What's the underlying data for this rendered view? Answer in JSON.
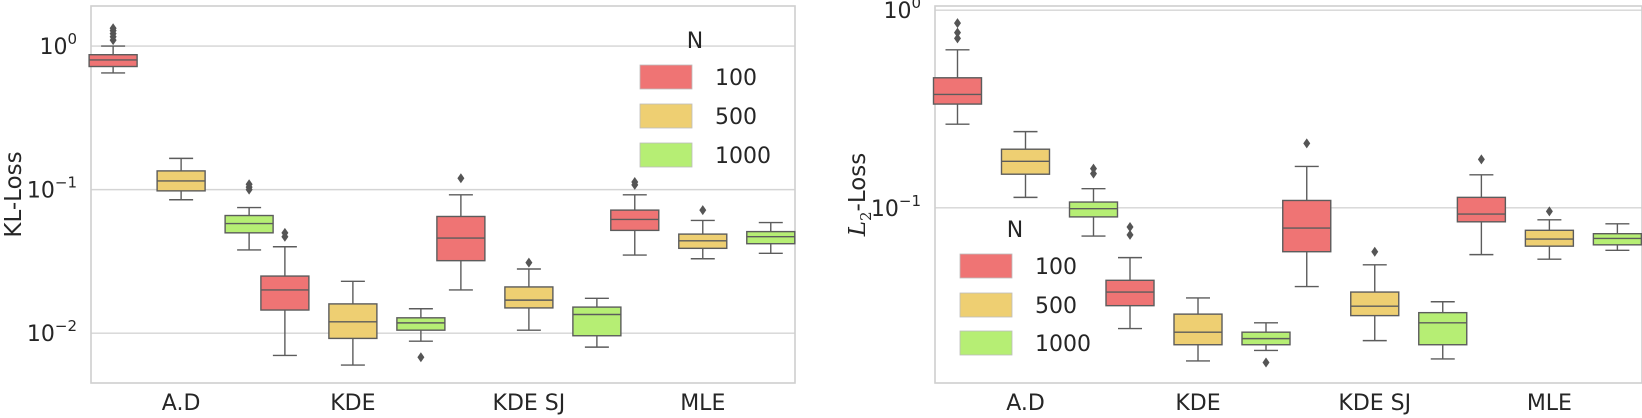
{
  "chart_data": [
    {
      "type": "box",
      "ylabel": "KL-Loss",
      "yscale": "log",
      "ylim": [
        0.0045,
        1.9
      ],
      "yticks": [
        {
          "value": 0.01,
          "base": "10",
          "exp": "−2"
        },
        {
          "value": 0.1,
          "base": "10",
          "exp": "−1"
        },
        {
          "value": 1,
          "base": "10",
          "exp": "0"
        }
      ],
      "grid": true,
      "categories": [
        "A.D",
        "KDE",
        "KDE SJ",
        "MLE"
      ],
      "legend": {
        "title": "N",
        "position": "upper-right",
        "entries": [
          "100",
          "500",
          "1000"
        ]
      },
      "series": [
        {
          "name": "100",
          "color": "#ef7474",
          "boxes": [
            {
              "low": 0.65,
              "q1": 0.72,
              "median": 0.8,
              "q3": 0.87,
              "high": 1.0,
              "fliers": [
                1.1,
                1.16,
                1.22,
                1.28,
                1.33
              ]
            },
            {
              "low": 0.007,
              "q1": 0.0145,
              "median": 0.02,
              "q3": 0.025,
              "high": 0.04,
              "fliers": [
                0.047,
                0.05
              ]
            },
            {
              "low": 0.02,
              "q1": 0.032,
              "median": 0.046,
              "q3": 0.065,
              "high": 0.092,
              "fliers": [
                0.12
              ]
            },
            {
              "low": 0.035,
              "q1": 0.052,
              "median": 0.062,
              "q3": 0.072,
              "high": 0.092,
              "fliers": [
                0.108,
                0.113
              ]
            }
          ]
        },
        {
          "name": "500",
          "color": "#eecf72",
          "boxes": [
            {
              "low": 0.085,
              "q1": 0.098,
              "median": 0.115,
              "q3": 0.135,
              "high": 0.165,
              "fliers": []
            },
            {
              "low": 0.006,
              "q1": 0.0092,
              "median": 0.012,
              "q3": 0.016,
              "high": 0.023,
              "fliers": []
            },
            {
              "low": 0.0105,
              "q1": 0.015,
              "median": 0.017,
              "q3": 0.021,
              "high": 0.028,
              "fliers": [
                0.031
              ]
            },
            {
              "low": 0.033,
              "q1": 0.039,
              "median": 0.044,
              "q3": 0.049,
              "high": 0.061,
              "fliers": [
                0.072
              ]
            }
          ]
        },
        {
          "name": "1000",
          "color": "#b6ee74",
          "boxes": [
            {
              "low": 0.038,
              "q1": 0.05,
              "median": 0.058,
              "q3": 0.066,
              "high": 0.075,
              "fliers": [
                0.1,
                0.104,
                0.109
              ]
            },
            {
              "low": 0.0088,
              "q1": 0.0105,
              "median": 0.0118,
              "q3": 0.0128,
              "high": 0.0148,
              "fliers": [
                0.0068
              ]
            },
            {
              "low": 0.008,
              "q1": 0.0096,
              "median": 0.0135,
              "q3": 0.0152,
              "high": 0.0175,
              "fliers": []
            },
            {
              "low": 0.036,
              "q1": 0.042,
              "median": 0.047,
              "q3": 0.051,
              "high": 0.059,
              "fliers": []
            }
          ]
        }
      ]
    },
    {
      "type": "box",
      "ylabel": "L2-Loss",
      "ylabel_parts": {
        "main": "L",
        "sub": "2",
        "rest": "-Loss"
      },
      "yscale": "log",
      "ylim": [
        0.013,
        1.05
      ],
      "yticks": [
        {
          "value": 0.1,
          "base": "10",
          "exp": "−1"
        },
        {
          "value": 1,
          "base": "10",
          "exp": "0"
        }
      ],
      "grid": true,
      "categories": [
        "A.D",
        "KDE",
        "KDE SJ",
        "MLE"
      ],
      "legend": {
        "title": "N",
        "position": "center-left",
        "entries": [
          "100",
          "500",
          "1000"
        ]
      },
      "series": [
        {
          "name": "100",
          "color": "#ef7474",
          "boxes": [
            {
              "low": 0.265,
              "q1": 0.335,
              "median": 0.375,
              "q3": 0.455,
              "high": 0.63,
              "fliers": [
                0.72,
                0.77,
                0.86
              ]
            },
            {
              "low": 0.0245,
              "q1": 0.032,
              "median": 0.0375,
              "q3": 0.043,
              "high": 0.056,
              "fliers": [
                0.073,
                0.08
              ]
            },
            {
              "low": 0.04,
              "q1": 0.06,
              "median": 0.079,
              "q3": 0.109,
              "high": 0.162,
              "fliers": [
                0.212
              ]
            },
            {
              "low": 0.058,
              "q1": 0.085,
              "median": 0.093,
              "q3": 0.113,
              "high": 0.147,
              "fliers": [
                0.176
              ]
            }
          ]
        },
        {
          "name": "500",
          "color": "#eecf72",
          "boxes": [
            {
              "low": 0.113,
              "q1": 0.148,
              "median": 0.172,
              "q3": 0.198,
              "high": 0.243,
              "fliers": []
            },
            {
              "low": 0.0168,
              "q1": 0.0203,
              "median": 0.0235,
              "q3": 0.029,
              "high": 0.035,
              "fliers": []
            },
            {
              "low": 0.0213,
              "q1": 0.0285,
              "median": 0.0318,
              "q3": 0.0375,
              "high": 0.0515,
              "fliers": [
                0.06
              ]
            },
            {
              "low": 0.055,
              "q1": 0.064,
              "median": 0.0695,
              "q3": 0.077,
              "high": 0.087,
              "fliers": [
                0.096
              ]
            }
          ]
        },
        {
          "name": "1000",
          "color": "#b6ee74",
          "boxes": [
            {
              "low": 0.072,
              "q1": 0.09,
              "median": 0.099,
              "q3": 0.107,
              "high": 0.125,
              "fliers": [
                0.149,
                0.158
              ]
            },
            {
              "low": 0.019,
              "q1": 0.0203,
              "median": 0.0218,
              "q3": 0.0235,
              "high": 0.0262,
              "fliers": [
                0.0165
              ]
            },
            {
              "low": 0.0172,
              "q1": 0.0203,
              "median": 0.0262,
              "q3": 0.0295,
              "high": 0.0335,
              "fliers": []
            },
            {
              "low": 0.061,
              "q1": 0.065,
              "median": 0.07,
              "q3": 0.074,
              "high": 0.083,
              "fliers": []
            }
          ]
        }
      ]
    }
  ]
}
